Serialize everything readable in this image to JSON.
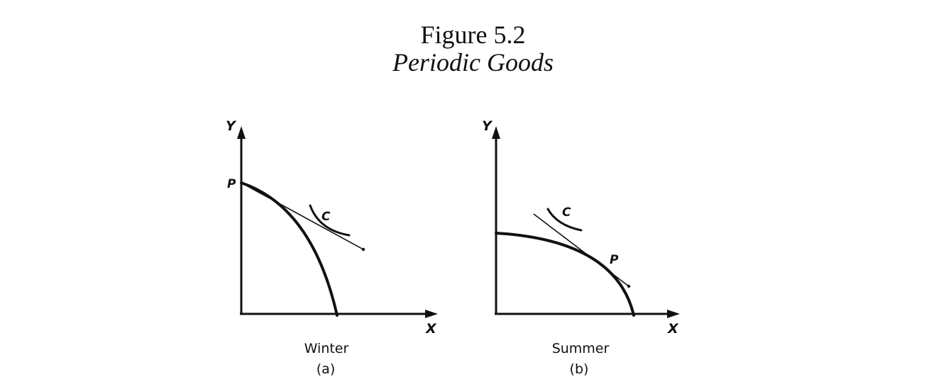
{
  "figure": {
    "title": "Figure 5.2",
    "subtitle": "Periodic Goods"
  },
  "panels": [
    {
      "caption": "Winter",
      "sublabel": "(a)",
      "y_axis_label": "Y",
      "x_axis_label": "X",
      "production_point_label": "P",
      "consumption_point_label": "C"
    },
    {
      "caption": "Summer",
      "sublabel": "(b)",
      "y_axis_label": "Y",
      "x_axis_label": "X",
      "production_point_label": "P",
      "consumption_point_label": "C"
    }
  ],
  "colors": {
    "ink": "#111111",
    "background": "#ffffff"
  }
}
